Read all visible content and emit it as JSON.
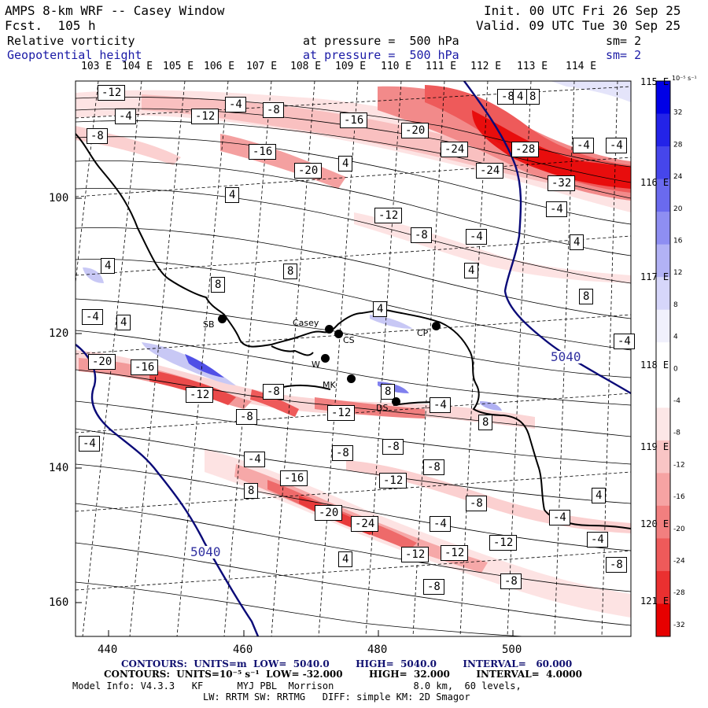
{
  "header": {
    "title": "AMPS 8-km WRF -- Casey Window",
    "forecast": "Fcst.  105 h",
    "init": "Init. 00 UTC Fri 26 Sep 25",
    "valid": "Valid. 09 UTC Tue 30 Sep 25",
    "field1": {
      "name": "Relative vorticity",
      "pressure": "at pressure =  500 hPa",
      "sm": "sm= 2"
    },
    "field2": {
      "name": "Geopotential height",
      "pressure": "at pressure =  500 hPa",
      "sm": "sm= 2"
    }
  },
  "axes": {
    "top_lon": [
      "103 E",
      "104 E",
      "105 E",
      "106 E",
      "107 E",
      "108 E",
      "109 E",
      "110 E",
      "111 E",
      "112 E",
      "113 E",
      "114 E"
    ],
    "right_lon": [
      "115 E",
      "116 E",
      "117 E",
      "118 E",
      "119 E",
      "120 E",
      "121 E"
    ],
    "y_ticks": [
      "100",
      "120",
      "140",
      "160"
    ],
    "x_ticks": [
      "440",
      "460",
      "480",
      "500"
    ]
  },
  "colorbar": {
    "unit": "10⁻⁵ s⁻¹",
    "labels": [
      "32",
      "28",
      "24",
      "20",
      "16",
      "12",
      "8",
      "4",
      "0",
      "-4",
      "-8",
      "-12",
      "-16",
      "-20",
      "-24",
      "-28",
      "-32"
    ],
    "colors": [
      "#0000e6",
      "#2323e8",
      "#4646eb",
      "#6a6aee",
      "#8e8ef2",
      "#b2b2f5",
      "#d6d6fa",
      "#f0f0fc",
      "#ffffff",
      "#ffffff",
      "#fce6e6",
      "#f9c5c5",
      "#f6a3a3",
      "#f27f7f",
      "#ee5a5a",
      "#ea3030",
      "#e60000"
    ]
  },
  "stations": [
    {
      "label": "Casey"
    },
    {
      "label": "CS"
    },
    {
      "label": "CP"
    },
    {
      "label": "SB"
    },
    {
      "label": "W"
    },
    {
      "label": "DS"
    },
    {
      "label": "MK"
    }
  ],
  "height_labels": [
    "5040",
    "5040"
  ],
  "contour_labels": {
    "row1": [
      "-12",
      "-4",
      "-8",
      "-4",
      "-8",
      "-12",
      "-16",
      "-20",
      "-24",
      "-8",
      "8",
      "-28",
      "-4",
      "-4",
      "-16",
      "-20",
      "4",
      "-24",
      "4",
      "-32",
      "-12",
      "-8",
      "-4",
      "-4",
      "4",
      "4",
      "4",
      "-4",
      "8",
      "8",
      "4",
      "4",
      "8",
      "-4",
      "4"
    ],
    "row2": [
      "-20",
      "-16",
      "-12",
      "-8",
      "-8",
      "-12",
      "8",
      "-4",
      "8",
      "-4",
      "-4",
      "-8",
      "-12",
      "-8",
      "-16",
      "8",
      "-20",
      "-24",
      "-4",
      "-8",
      "-4",
      "-12",
      "-12",
      "-12",
      "4",
      "-8",
      "-8",
      "4",
      "-8",
      "-4",
      "-8"
    ]
  },
  "footer": {
    "line1": "CONTOURS:  UNITS=m  LOW=  5040.0        HIGH=  5040.0        INTERVAL=   60.000",
    "line2": "CONTOURS:  UNITS=10⁻⁵ s⁻¹  LOW= -32.000        HIGH=  32.000        INTERVAL=  4.0000",
    "line3": "Model Info: V4.3.3   KF      MYJ PBL  Morrison              8.0 km,  60 levels,",
    "line4": "LW: RRTM SW: RRTMG   DIFF: simple KM: 2D Smagor"
  }
}
